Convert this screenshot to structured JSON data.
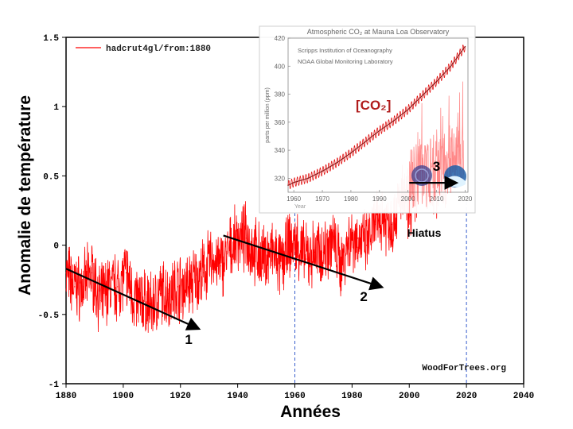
{
  "colors": {
    "temperature": "#ff0000",
    "co2_line": "#8b1a1a",
    "co2_fluct": "#e00000",
    "arrows": "#000000",
    "reference_lines": "#3a5fcd",
    "co2_label": "#b01c1c",
    "inset_text": "#666666"
  },
  "chart_data": [
    {
      "type": "line",
      "title": "",
      "xlabel": "Années",
      "ylabel": "Anomalie de température",
      "xlim": [
        1880,
        2040
      ],
      "ylim": [
        -1,
        1.5
      ],
      "x_ticks": [
        "1880",
        "1900",
        "1920",
        "1940",
        "1960",
        "1980",
        "2000",
        "2020",
        "2040"
      ],
      "y_ticks": [
        "1.5",
        "1",
        "0.5",
        "0",
        "-0.5",
        "-1"
      ],
      "grid": false,
      "legend": "top-left",
      "source_label": "WoodForTrees.org",
      "series": [
        {
          "name": "hadcrut4gl/from:1880",
          "x": [
            1880,
            1883,
            1886,
            1889,
            1892,
            1895,
            1898,
            1901,
            1904,
            1907,
            1910,
            1913,
            1916,
            1919,
            1922,
            1925,
            1928,
            1931,
            1934,
            1937,
            1940,
            1943,
            1946,
            1949,
            1952,
            1955,
            1958,
            1961,
            1964,
            1967,
            1970,
            1973,
            1976,
            1979,
            1982,
            1985,
            1988,
            1991,
            1994,
            1997,
            2000,
            2003,
            2006,
            2009,
            2012,
            2015,
            2018
          ],
          "values": [
            -0.2,
            -0.3,
            -0.3,
            -0.2,
            -0.4,
            -0.3,
            -0.3,
            -0.2,
            -0.4,
            -0.4,
            -0.45,
            -0.35,
            -0.35,
            -0.3,
            -0.3,
            -0.25,
            -0.2,
            -0.1,
            -0.15,
            -0.05,
            0.05,
            0.05,
            -0.05,
            -0.1,
            -0.05,
            -0.15,
            0.0,
            0.0,
            -0.1,
            -0.05,
            -0.05,
            0.05,
            -0.15,
            0.05,
            0.05,
            0.0,
            0.15,
            0.2,
            0.15,
            0.35,
            0.3,
            0.45,
            0.45,
            0.45,
            0.45,
            0.6,
            0.65
          ]
        }
      ],
      "trend_arrows": [
        {
          "label": "1",
          "x_start": 1880,
          "y_start": -0.17,
          "x_end": 1926,
          "y_end": -0.6
        },
        {
          "label": "2",
          "x_start": 1935,
          "y_start": 0.07,
          "x_end": 1990,
          "y_end": -0.3
        },
        {
          "label": "3",
          "x_start": 2000,
          "y_start": 0.45,
          "x_end": 2016,
          "y_end": 0.45
        }
      ],
      "reference_lines_x": [
        1960,
        2020
      ],
      "annotations": [
        "Hiatus"
      ]
    },
    {
      "type": "line",
      "title": "Atmospheric CO₂ at Mauna Loa Observatory",
      "subtitle_lines": [
        "Scripps Institution of Oceanography",
        "NOAA Global Monitoring Laboratory"
      ],
      "xlabel": "Year",
      "ylabel": "parts per million (ppm)",
      "xlim": [
        1958,
        2021
      ],
      "ylim": [
        310,
        420
      ],
      "x_ticks": [
        "1960",
        "1970",
        "1980",
        "1990",
        "2000",
        "2010",
        "2020"
      ],
      "y_ticks": [
        "420",
        "400",
        "380",
        "360",
        "340",
        "320"
      ],
      "series_label": "[CO₂]",
      "series": [
        {
          "name": "",
          "x": [
            1958,
            1960,
            1965,
            1970,
            1975,
            1980,
            1985,
            1990,
            1995,
            2000,
            2005,
            2010,
            2015,
            2020
          ],
          "values": [
            315,
            317,
            320,
            325,
            331,
            338,
            346,
            354,
            361,
            369,
            379,
            389,
            400,
            414
          ]
        }
      ]
    }
  ]
}
